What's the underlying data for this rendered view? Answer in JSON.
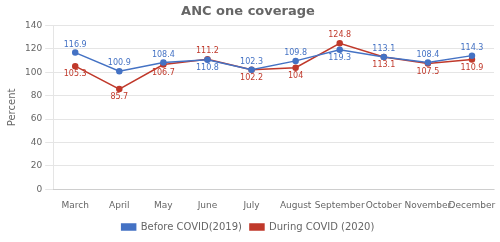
{
  "chart_data": {
    "type": "line",
    "title": "ANC one coverage",
    "categories": [
      "March",
      "April",
      "May",
      "June",
      "July",
      "August",
      "September",
      "October",
      "November",
      "December"
    ],
    "series": [
      {
        "name": "Before COVID(2019)",
        "color": "#4472c4",
        "marker": "circle",
        "values": [
          116.9,
          100.9,
          108.4,
          110.8,
          102.3,
          109.8,
          119.3,
          113.1,
          108.4,
          114.3
        ]
      },
      {
        "name": "During COVID (2020)",
        "color": "#c0392b",
        "marker": "circle",
        "values": [
          105.3,
          85.7,
          106.7,
          111.2,
          102.2,
          104.0,
          124.8,
          113.1,
          107.5,
          110.9
        ]
      }
    ],
    "ylabel": "Percent",
    "ylim": [
      0,
      140
    ],
    "yticks": [
      0,
      20,
      40,
      60,
      80,
      100,
      120,
      140
    ],
    "grid": "y",
    "legend": "bottom",
    "data_labels": true
  }
}
